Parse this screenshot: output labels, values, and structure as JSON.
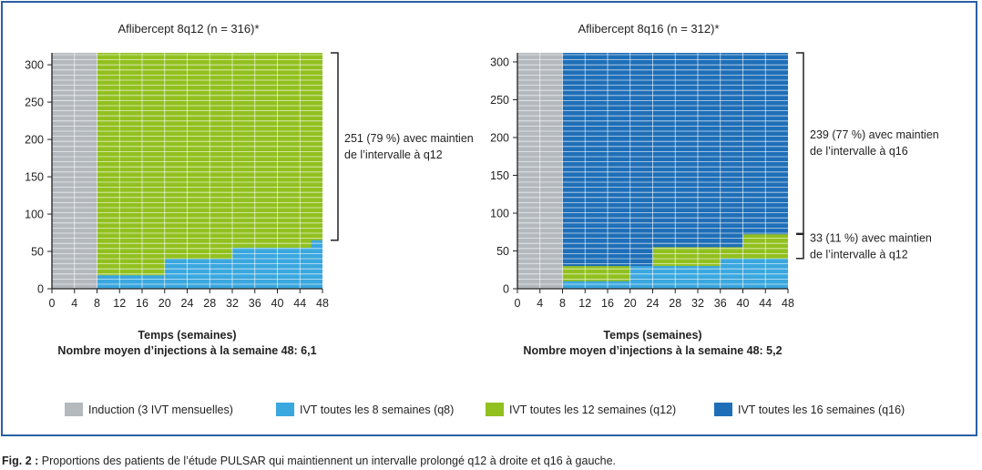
{
  "figure": {
    "caption_label": "Fig. 2 :",
    "caption_text": " Proportions des patients de l’étude PULSAR qui maintiennent un intervalle prolongé q12 à droite et q16 à gauche."
  },
  "colors": {
    "induction": "#b3b9bd",
    "q8": "#3aa7df",
    "q12": "#92c01f",
    "q16": "#1f6fb8",
    "frame": "#2a5fa6"
  },
  "legend": [
    {
      "key": "induction",
      "label": "Induction (3 IVT mensuelles)"
    },
    {
      "key": "q8",
      "label": "IVT toutes les 8 semaines (q8)"
    },
    {
      "key": "q12",
      "label": "IVT toutes les 12 semaines (q12)"
    },
    {
      "key": "q16",
      "label": "IVT toutes les 16 semaines (q16)"
    }
  ],
  "chart_data": [
    {
      "type": "area",
      "title": "Aflibercept 8q12 (n = 316)*",
      "xlabel": "Temps (semaines)",
      "subxlabel": "Nombre moyen d’injections à la semaine 48: 6,1",
      "x_ticks": [
        0,
        4,
        8,
        12,
        16,
        20,
        24,
        28,
        32,
        36,
        40,
        44,
        48
      ],
      "y_ticks": [
        0,
        50,
        100,
        150,
        200,
        250,
        300
      ],
      "xlim": [
        0,
        48
      ],
      "ylim": [
        0,
        316
      ],
      "regions": [
        {
          "key": "induction",
          "x": [
            0,
            8
          ],
          "y": [
            0,
            316
          ]
        },
        {
          "key": "q12",
          "x": [
            8,
            48
          ],
          "y": [
            0,
            316
          ]
        },
        {
          "key": "q8",
          "x": [
            8,
            20
          ],
          "y": [
            0,
            18
          ]
        },
        {
          "key": "q8",
          "x": [
            20,
            32
          ],
          "y": [
            0,
            40
          ]
        },
        {
          "key": "q8",
          "x": [
            32,
            46
          ],
          "y": [
            0,
            55
          ]
        },
        {
          "key": "q8",
          "x": [
            46,
            48
          ],
          "y": [
            0,
            65
          ]
        }
      ],
      "annotations": [
        {
          "lines": [
            "251 (79 %) avec maintien",
            "de l’intervalle à q12"
          ],
          "y_range": [
            65,
            316
          ]
        }
      ]
    },
    {
      "type": "area",
      "title": "Aflibercept 8q16 (n = 312)*",
      "xlabel": "Temps (semaines)",
      "subxlabel": "Nombre moyen d’injections à la semaine 48: 5,2",
      "x_ticks": [
        0,
        4,
        8,
        12,
        16,
        20,
        24,
        28,
        32,
        36,
        40,
        44,
        48
      ],
      "y_ticks": [
        0,
        50,
        100,
        150,
        200,
        250,
        300
      ],
      "xlim": [
        0,
        48
      ],
      "ylim": [
        0,
        312
      ],
      "regions": [
        {
          "key": "induction",
          "x": [
            0,
            8
          ],
          "y": [
            0,
            312
          ]
        },
        {
          "key": "q16",
          "x": [
            8,
            48
          ],
          "y": [
            0,
            312
          ]
        },
        {
          "key": "q12",
          "x": [
            8,
            20
          ],
          "y": [
            0,
            30
          ]
        },
        {
          "key": "q12",
          "x": [
            24,
            40
          ],
          "y": [
            0,
            55
          ]
        },
        {
          "key": "q12",
          "x": [
            40,
            48
          ],
          "y": [
            0,
            72
          ]
        },
        {
          "key": "q8",
          "x": [
            8,
            20
          ],
          "y": [
            0,
            10
          ]
        },
        {
          "key": "q8",
          "x": [
            20,
            36
          ],
          "y": [
            0,
            30
          ]
        },
        {
          "key": "q8",
          "x": [
            36,
            48
          ],
          "y": [
            0,
            40
          ]
        }
      ],
      "annotations": [
        {
          "lines": [
            "239 (77 %) avec maintien",
            "de l’intervalle à q16"
          ],
          "y_range": [
            73,
            312
          ]
        },
        {
          "lines": [
            "33 (11 %) avec maintien",
            "de l’intervalle à q12"
          ],
          "y_range": [
            40,
            72
          ]
        }
      ]
    }
  ]
}
